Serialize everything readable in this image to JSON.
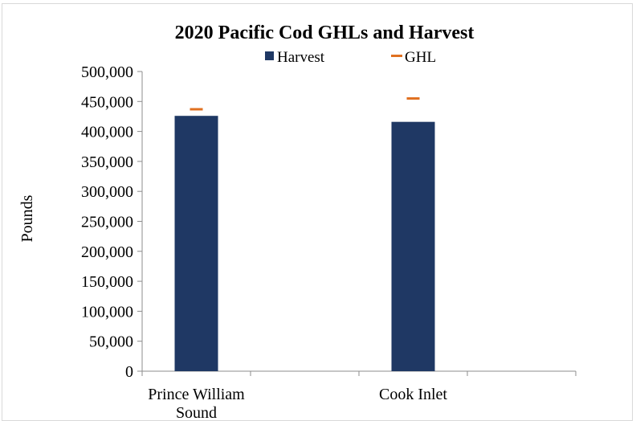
{
  "chart_data": {
    "type": "bar",
    "title": "2020 Pacific Cod GHLs and Harvest",
    "xlabel": "",
    "ylabel": "Pounds",
    "categories": [
      "Prince William Sound",
      "Cook Inlet"
    ],
    "category_lines": [
      [
        "Prince William",
        "Sound"
      ],
      [
        "Cook Inlet"
      ]
    ],
    "series": [
      {
        "name": "Harvest",
        "kind": "bar",
        "color": "#1f3864",
        "values": [
          426000,
          416000
        ]
      },
      {
        "name": "GHL",
        "kind": "marker",
        "color": "#e07020",
        "values": [
          437000,
          455000
        ]
      }
    ],
    "ylim": [
      0,
      500000
    ],
    "yticks": [
      0,
      50000,
      100000,
      150000,
      200000,
      250000,
      300000,
      350000,
      400000,
      450000,
      500000
    ],
    "ytick_labels": [
      "0",
      "50,000",
      "100,000",
      "150,000",
      "200,000",
      "250,000",
      "300,000",
      "350,000",
      "400,000",
      "450,000",
      "500,000"
    ],
    "grid": false,
    "legend_position": "top-center"
  }
}
